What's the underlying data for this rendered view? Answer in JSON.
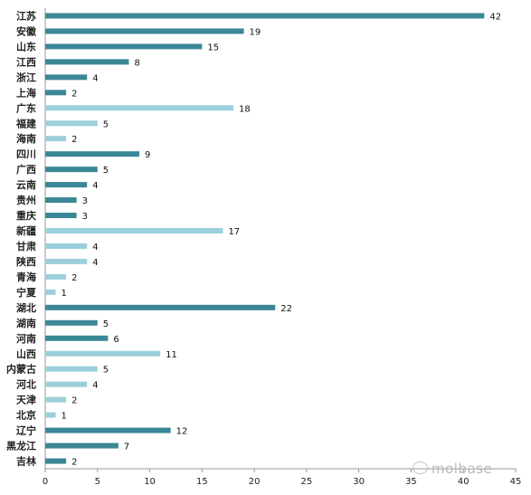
{
  "chart_data": {
    "type": "bar",
    "orientation": "horizontal",
    "categories": [
      "江苏",
      "安徽",
      "山东",
      "江西",
      "浙江",
      "上海",
      "广东",
      "福建",
      "海南",
      "四川",
      "广西",
      "云南",
      "贵州",
      "重庆",
      "新疆",
      "甘肃",
      "陕西",
      "青海",
      "宁夏",
      "湖北",
      "湖南",
      "河南",
      "山西",
      "内蒙古",
      "河北",
      "天津",
      "北京",
      "辽宁",
      "黑龙江",
      "吉林"
    ],
    "values": [
      42,
      19,
      15,
      8,
      4,
      2,
      18,
      5,
      2,
      9,
      5,
      4,
      3,
      3,
      17,
      4,
      4,
      2,
      1,
      22,
      5,
      6,
      11,
      5,
      4,
      2,
      1,
      12,
      7,
      2
    ],
    "bar_colors": [
      "#3a8796",
      "#3a8796",
      "#3a8796",
      "#3a8796",
      "#3a8796",
      "#3a8796",
      "#9ccfdc",
      "#9ccfdc",
      "#9ccfdc",
      "#3a8796",
      "#3a8796",
      "#3a8796",
      "#3a8796",
      "#3a8796",
      "#9ccfdc",
      "#9ccfdc",
      "#9ccfdc",
      "#9ccfdc",
      "#9ccfdc",
      "#3a8796",
      "#3a8796",
      "#3a8796",
      "#9ccfdc",
      "#9ccfdc",
      "#9ccfdc",
      "#9ccfdc",
      "#9ccfdc",
      "#3a8796",
      "#3a8796",
      "#3a8796"
    ],
    "xlim": [
      0,
      45
    ],
    "xticks": [
      0,
      5,
      10,
      15,
      20,
      25,
      30,
      35,
      40,
      45
    ],
    "grid": false,
    "legend": "none"
  },
  "watermark": "molbase"
}
